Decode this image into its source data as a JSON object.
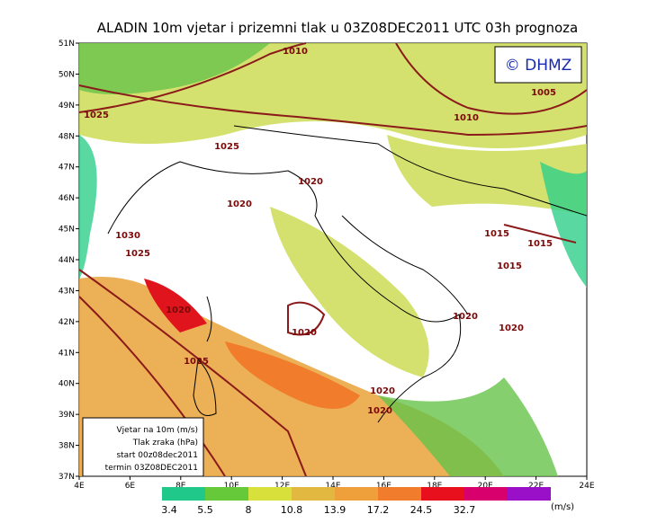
{
  "title": "ALADIN 10m vjetar i prizemni tlak u 03Z08DEC2011 UTC 03h prognoza",
  "logo": "© DHMZ",
  "lat_ticks": [
    "37N",
    "38N",
    "39N",
    "40N",
    "41N",
    "42N",
    "43N",
    "44N",
    "45N",
    "46N",
    "47N",
    "48N",
    "49N",
    "50N",
    "51N"
  ],
  "lon_ticks": [
    "4E",
    "6E",
    "8E",
    "10E",
    "12E",
    "14E",
    "16E",
    "18E",
    "20E",
    "22E",
    "24E"
  ],
  "isobars": [
    "1010",
    "1005",
    "1025",
    "1010",
    "1025",
    "1020",
    "1020",
    "1030",
    "1015",
    "1015",
    "1025",
    "1015",
    "1020",
    "1020",
    "1020",
    "1020",
    "1025",
    "1020",
    "1020"
  ],
  "legend": [
    "Vjetar na 10m (m/s)",
    "Tlak zraka (hPa)",
    "start 00z08dec2011",
    "termin 03Z08DEC2011"
  ],
  "colorbar": {
    "labels": [
      "3.4",
      "5.5",
      "8",
      "10.8",
      "13.9",
      "17.2",
      "24.5",
      "32.7"
    ],
    "colors": [
      "#20c98a",
      "#66c93a",
      "#d8e03c",
      "#e2b840",
      "#f0a03a",
      "#f07c2c",
      "#e8101c",
      "#d8006c",
      "#9a10c8"
    ],
    "unit": "(m/s)"
  }
}
